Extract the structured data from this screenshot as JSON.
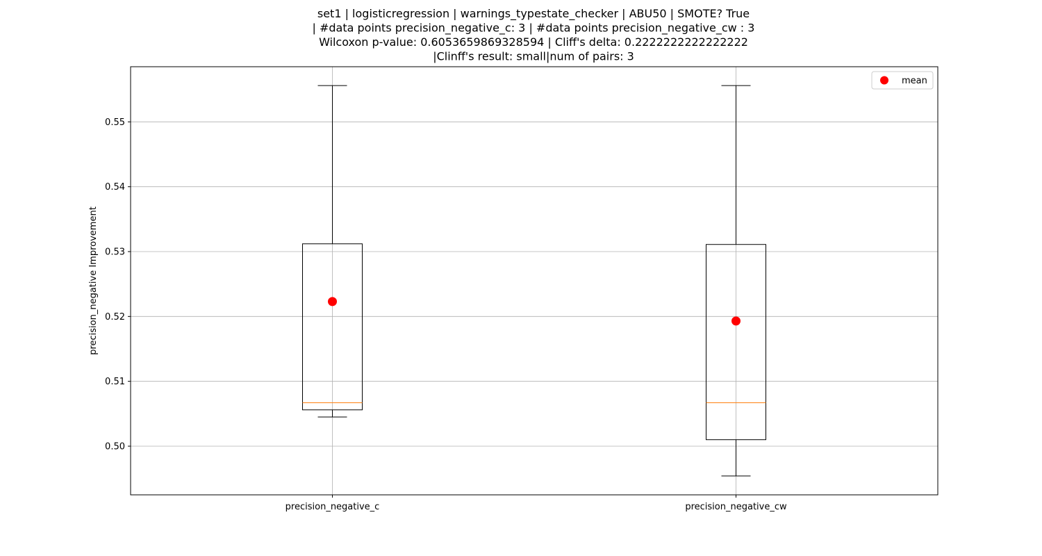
{
  "chart_data": {
    "type": "box",
    "title_lines": [
      "set1 | logisticregression | warnings_typestate_checker | ABU50 | SMOTE? True",
      "| #data points precision_negative_c: 3 | #data points precision_negative_cw : 3",
      "Wilcoxon p-value: 0.6053659869328594 | Cliff's delta: 0.2222222222222222",
      "|Clinff's result: small|num of pairs: 3"
    ],
    "ylabel": "precision_negative Improvement",
    "xlabel": "",
    "ylim": [
      0.4925,
      0.5585
    ],
    "yticks": [
      0.5,
      0.51,
      0.52,
      0.53,
      0.54,
      0.55
    ],
    "ytick_labels": [
      "0.50",
      "0.51",
      "0.52",
      "0.53",
      "0.54",
      "0.55"
    ],
    "grid": true,
    "legend": {
      "placement": "top-right",
      "label": "mean"
    },
    "categories": [
      "precision_negative_c",
      "precision_negative_cw"
    ],
    "boxes": [
      {
        "whisker_low": 0.5045,
        "q1": 0.5056,
        "median": 0.5067,
        "q3": 0.5312,
        "whisker_high": 0.5556,
        "mean": 0.5223
      },
      {
        "whisker_low": 0.4954,
        "q1": 0.501,
        "median": 0.5067,
        "q3": 0.5311,
        "whisker_high": 0.5556,
        "mean": 0.5193
      }
    ],
    "colors": {
      "box": "#000000",
      "median": "#ff7f0e",
      "mean": "#ff0000",
      "grid": "#b0b0b0"
    }
  }
}
